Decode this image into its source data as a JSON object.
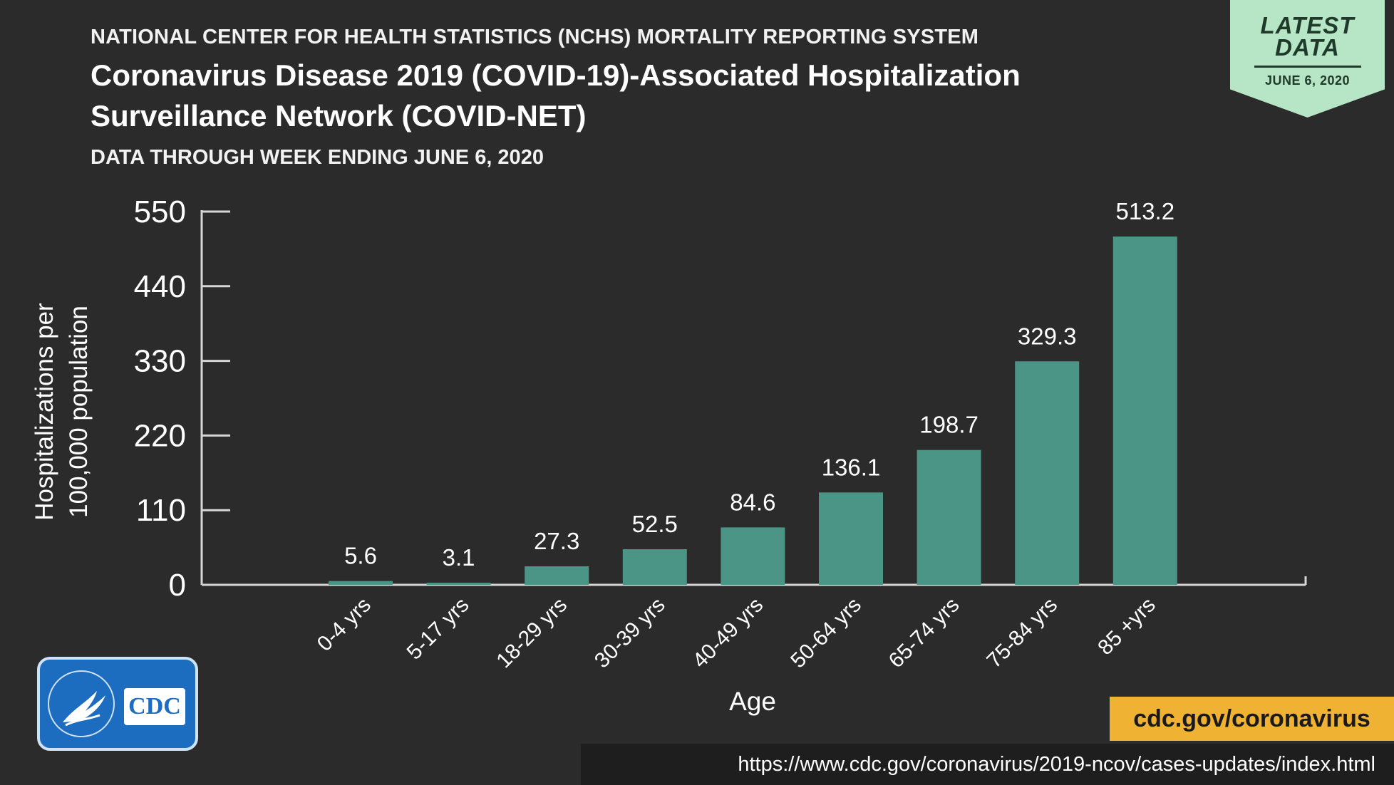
{
  "header": {
    "agency": "NATIONAL CENTER FOR HEALTH STATISTICS (NCHS) MORTALITY REPORTING SYSTEM",
    "title_line1": "Coronavirus Disease 2019 (COVID-19)-Associated Hospitalization",
    "title_line2": "Surveillance Network (COVID-NET)",
    "subtitle": "DATA THROUGH WEEK ENDING JUNE 6, 2020"
  },
  "badge": {
    "title_line1": "LATEST",
    "title_line2": "DATA",
    "date": "JUNE 6, 2020"
  },
  "chart_data": {
    "type": "bar",
    "categories": [
      "0-4 yrs",
      "5-17 yrs",
      "18-29 yrs",
      "30-39 yrs",
      "40-49 yrs",
      "50-64 yrs",
      "65-74 yrs",
      "75-84 yrs",
      "85 +yrs"
    ],
    "values": [
      5.6,
      3.1,
      27.3,
      52.5,
      84.6,
      136.1,
      198.7,
      329.3,
      513.2
    ],
    "data_labels": [
      "5.6",
      "3.1",
      "27.3",
      "52.5",
      "84.6",
      "136.1",
      "198.7",
      "329.3",
      "513.2"
    ],
    "xlabel": "Age",
    "ylabel_line1": "Hospitalizations per",
    "ylabel_line2": "100,000 population",
    "yticks": [
      0,
      110,
      220,
      330,
      440,
      550
    ],
    "ylim": [
      0,
      550
    ],
    "grid": false,
    "bar_color": "#4a9585"
  },
  "footer": {
    "logo_text": "CDC",
    "site": "cdc.gov/coronavirus",
    "source_url": "https://www.cdc.gov/coronavirus/2019-ncov/cases-updates/index.html"
  },
  "colors": {
    "background": "#2b2b2b",
    "badge": "#b6e6c5",
    "url_tag": "#f0b233",
    "logo": "#1c6cbf"
  }
}
